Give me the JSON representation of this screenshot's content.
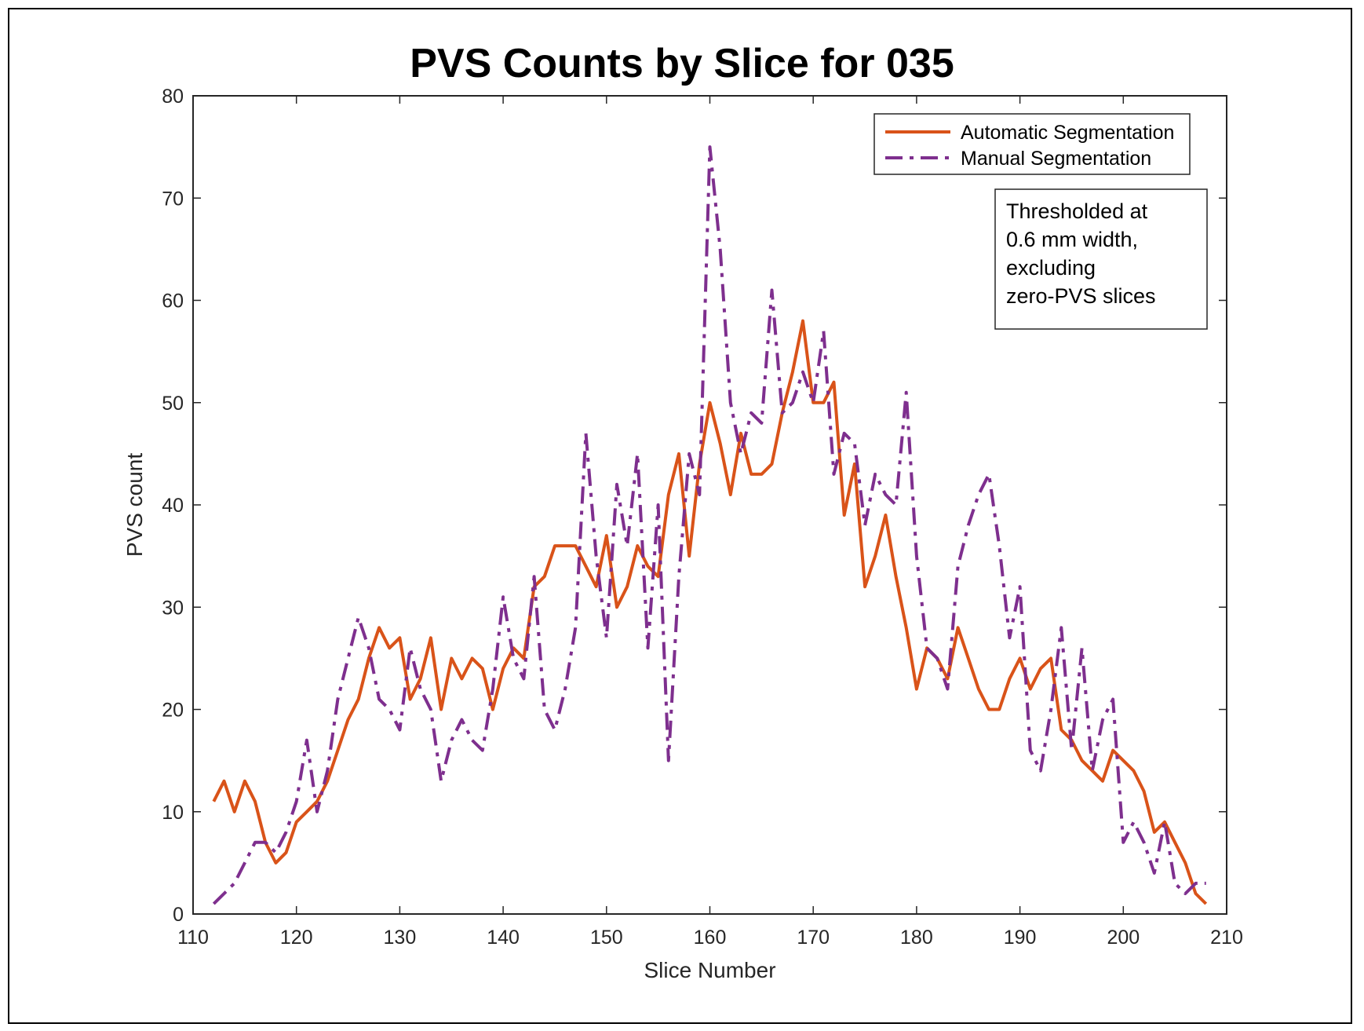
{
  "chart_data": {
    "type": "line",
    "title": "PVS Counts by Slice for 035",
    "xlabel": "Slice Number",
    "ylabel": "PVS count",
    "xlim": [
      110,
      210
    ],
    "ylim": [
      0,
      80
    ],
    "xticks": [
      110,
      120,
      130,
      140,
      150,
      160,
      170,
      180,
      190,
      200,
      210
    ],
    "yticks": [
      0,
      10,
      20,
      30,
      40,
      50,
      60,
      70,
      80
    ],
    "grid": false,
    "legend_position": "top-right",
    "annotation": [
      "Thresholded at",
      "0.6 mm width,",
      "excluding",
      "zero-PVS slices"
    ],
    "series": [
      {
        "name": "Automatic Segmentation",
        "color": "#D95319",
        "style": "solid",
        "x": [
          112,
          113,
          114,
          115,
          116,
          117,
          118,
          119,
          120,
          121,
          122,
          123,
          124,
          125,
          126,
          127,
          128,
          129,
          130,
          131,
          132,
          133,
          134,
          135,
          136,
          137,
          138,
          139,
          140,
          141,
          142,
          143,
          144,
          145,
          146,
          147,
          148,
          149,
          150,
          151,
          152,
          153,
          154,
          155,
          156,
          157,
          158,
          159,
          160,
          161,
          162,
          163,
          164,
          165,
          166,
          167,
          168,
          169,
          170,
          171,
          172,
          173,
          174,
          175,
          176,
          177,
          178,
          179,
          180,
          181,
          182,
          183,
          184,
          185,
          186,
          187,
          188,
          189,
          190,
          191,
          192,
          193,
          194,
          195,
          196,
          197,
          198,
          199,
          200,
          201,
          202,
          203,
          204,
          205,
          206,
          207,
          208
        ],
        "y": [
          11,
          13,
          10,
          13,
          11,
          7,
          5,
          6,
          9,
          10,
          11,
          13,
          16,
          19,
          21,
          25,
          28,
          26,
          27,
          21,
          23,
          27,
          20,
          25,
          23,
          25,
          24,
          20,
          24,
          26,
          25,
          32,
          33,
          36,
          36,
          36,
          34,
          32,
          37,
          30,
          32,
          36,
          34,
          33,
          41,
          45,
          35,
          44,
          50,
          46,
          41,
          47,
          43,
          43,
          44,
          49,
          53,
          58,
          50,
          50,
          52,
          39,
          44,
          32,
          35,
          39,
          33,
          28,
          22,
          26,
          25,
          23,
          28,
          25,
          22,
          20,
          20,
          23,
          25,
          22,
          24,
          25,
          18,
          17,
          15,
          14,
          13,
          16,
          15,
          14,
          12,
          8,
          9,
          7,
          5,
          2,
          1
        ]
      },
      {
        "name": "Manual Segmentation",
        "color": "#7E2F8E",
        "style": "dashdot",
        "x": [
          112,
          113,
          114,
          115,
          116,
          117,
          118,
          119,
          120,
          121,
          122,
          123,
          124,
          125,
          126,
          127,
          128,
          129,
          130,
          131,
          132,
          133,
          134,
          135,
          136,
          137,
          138,
          139,
          140,
          141,
          142,
          143,
          144,
          145,
          146,
          147,
          148,
          149,
          150,
          151,
          152,
          153,
          154,
          155,
          156,
          157,
          158,
          159,
          160,
          161,
          162,
          163,
          164,
          165,
          166,
          167,
          168,
          169,
          170,
          171,
          172,
          173,
          174,
          175,
          176,
          177,
          178,
          179,
          180,
          181,
          182,
          183,
          184,
          185,
          186,
          187,
          188,
          189,
          190,
          191,
          192,
          193,
          194,
          195,
          196,
          197,
          198,
          199,
          200,
          201,
          202,
          203,
          204,
          205,
          206,
          207,
          208
        ],
        "y": [
          1,
          2,
          3,
          5,
          7,
          7,
          6,
          8,
          11,
          17,
          10,
          14,
          21,
          25,
          29,
          26,
          21,
          20,
          18,
          26,
          22,
          20,
          13,
          17,
          19,
          17,
          16,
          22,
          31,
          25,
          23,
          33,
          20,
          18,
          22,
          28,
          47,
          35,
          27,
          42,
          36,
          45,
          26,
          40,
          15,
          33,
          45,
          41,
          75,
          65,
          50,
          45,
          49,
          48,
          61,
          49,
          50,
          53,
          50,
          57,
          43,
          47,
          46,
          38,
          43,
          41,
          40,
          51,
          35,
          26,
          25,
          22,
          34,
          38,
          41,
          43,
          36,
          27,
          32,
          16,
          14,
          20,
          28,
          16,
          26,
          14,
          19,
          21,
          7,
          9,
          7,
          4,
          9,
          3,
          2,
          3,
          3
        ]
      }
    ]
  }
}
